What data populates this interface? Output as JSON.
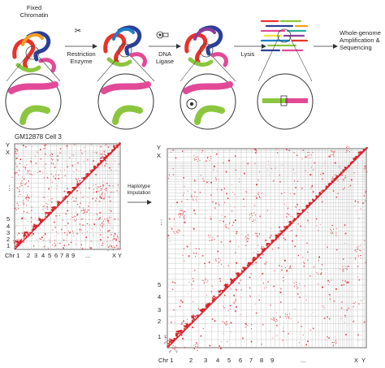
{
  "pipeline": {
    "fixed_chromatin": "Fixed\nChromatin",
    "restriction_enzyme": "Restriction\nEnzyme",
    "dna_ligase": "DNA\nLigase",
    "lysis": "Lysis",
    "output": "Whole-genome\nAmplification &\nSequencing"
  },
  "heatmap_small": {
    "title": "GM12878 Cell 3",
    "left_ticks": [
      "Y",
      "X",
      "⋮",
      "5",
      "4",
      "3",
      "2",
      "1"
    ],
    "bottom_ticks": [
      "Chr 1",
      "2",
      "3",
      "4",
      "5",
      "6",
      "7",
      "8",
      "9",
      "...",
      "X",
      "Y"
    ]
  },
  "imputation": {
    "label": "Haplotype\nImputation"
  },
  "heatmap_large": {
    "left_ticks": [
      "Y",
      "X",
      "⋮",
      "5",
      "4",
      "3",
      "2",
      "1"
    ],
    "bottom_ticks": [
      "Chr 1",
      "2",
      "3",
      "4",
      "5",
      "6",
      "7",
      "8",
      "9",
      "...",
      "X",
      "Y"
    ],
    "female_symbol": "♀",
    "male_symbol": "♂"
  },
  "colors": {
    "contact": "#d8232a",
    "grid": "#b0b0b0",
    "chromatin": [
      "#e8322a",
      "#f0a01e",
      "#f2e13a",
      "#8cc63f",
      "#2bb0a0",
      "#1f7fc8",
      "#2b3f9a",
      "#8a3fa0",
      "#e24a98"
    ]
  }
}
